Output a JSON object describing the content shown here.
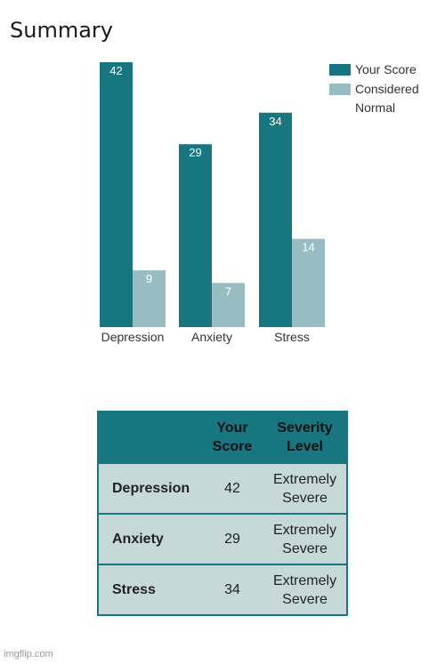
{
  "page": {
    "title": "Summary",
    "watermark": "imgflip.com"
  },
  "colors": {
    "your_score": "#17767f",
    "considered_normal": "#97bcc1",
    "table_header": "#17767f",
    "table_body": "#c7d8d8"
  },
  "chart_data": {
    "type": "bar",
    "title": "Summary",
    "categories": [
      "Depression",
      "Anxiety",
      "Stress"
    ],
    "series": [
      {
        "name": "Your Score",
        "values": [
          42,
          29,
          34
        ]
      },
      {
        "name": "Considered Normal",
        "values": [
          9,
          7,
          14
        ]
      }
    ],
    "ylim": [
      0,
      42
    ],
    "grid": false,
    "legend_position": "top-right",
    "data_labels": true
  },
  "table": {
    "headers": [
      "",
      "Your Score",
      "Severity Level"
    ],
    "rows": [
      [
        "Depression",
        "42",
        "Extremely Severe"
      ],
      [
        "Anxiety",
        "29",
        "Extremely Severe"
      ],
      [
        "Stress",
        "34",
        "Extremely Severe"
      ]
    ]
  }
}
